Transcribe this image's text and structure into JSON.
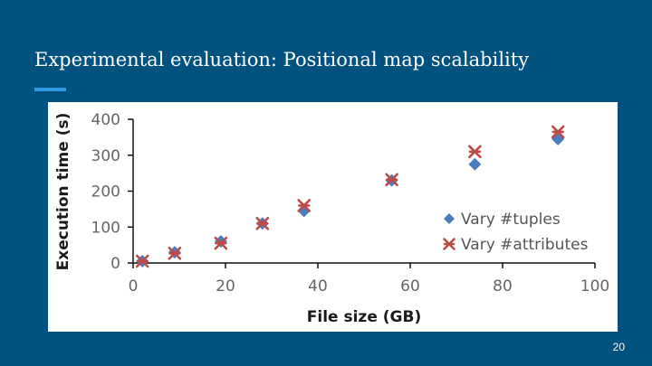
{
  "slide": {
    "title": "Experimental evaluation: Positional map scalability",
    "page_number": "20"
  },
  "chart_data": {
    "type": "scatter",
    "title": "",
    "xlabel": "File size (GB)",
    "ylabel": "Execution time (s)",
    "xlim": [
      0,
      100
    ],
    "ylim": [
      0,
      400
    ],
    "x_ticks": [
      "0",
      "20",
      "40",
      "60",
      "80",
      "100"
    ],
    "y_ticks": [
      "0",
      "100",
      "200",
      "300",
      "400"
    ],
    "grid": false,
    "legend_position": "right",
    "series": [
      {
        "name": "Vary #tuples",
        "marker": "diamond",
        "color": "#4a7ebb",
        "points": [
          {
            "x": 2,
            "y": 5
          },
          {
            "x": 9,
            "y": 30
          },
          {
            "x": 19,
            "y": 60
          },
          {
            "x": 28,
            "y": 110
          },
          {
            "x": 37,
            "y": 145
          },
          {
            "x": 56,
            "y": 230
          },
          {
            "x": 74,
            "y": 275
          },
          {
            "x": 92,
            "y": 345
          }
        ]
      },
      {
        "name": "Vary #attributes",
        "marker": "asterisk",
        "color": "#be4b48",
        "points": [
          {
            "x": 2,
            "y": 5
          },
          {
            "x": 9,
            "y": 27
          },
          {
            "x": 19,
            "y": 55
          },
          {
            "x": 28,
            "y": 110
          },
          {
            "x": 37,
            "y": 160
          },
          {
            "x": 56,
            "y": 232
          },
          {
            "x": 74,
            "y": 310
          },
          {
            "x": 92,
            "y": 365
          }
        ]
      }
    ]
  }
}
